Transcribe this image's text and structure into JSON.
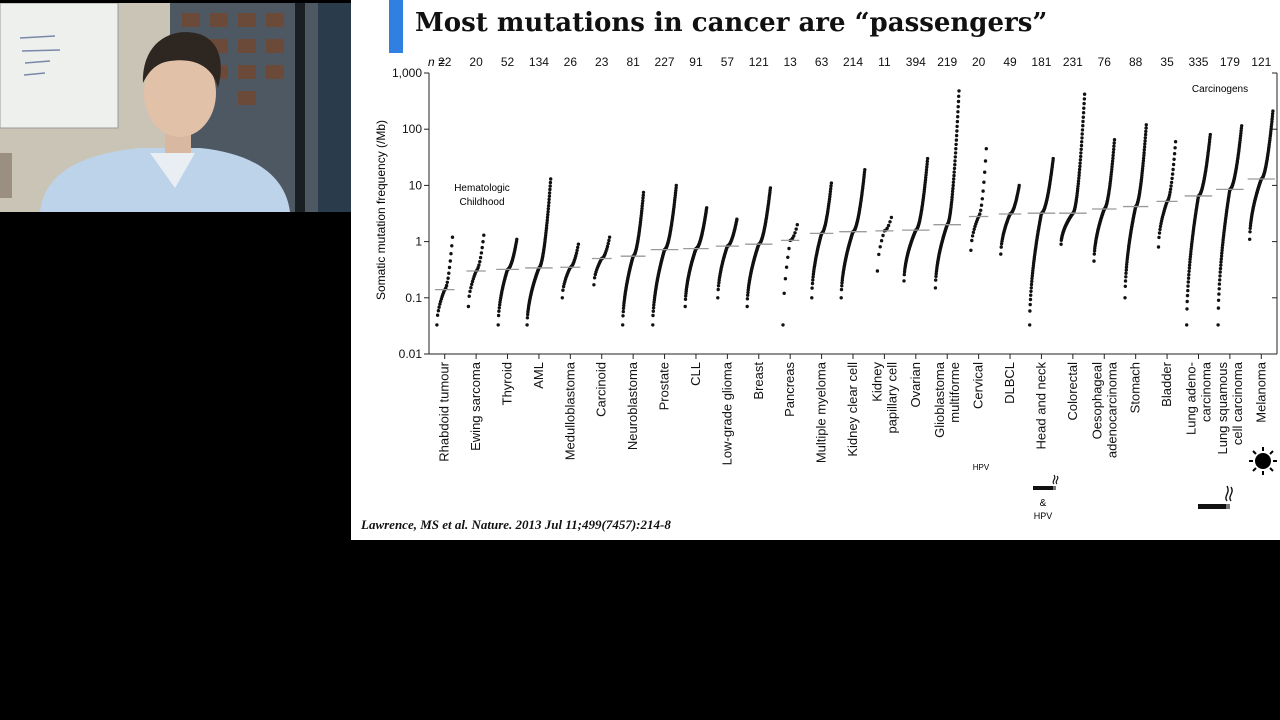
{
  "slide": {
    "title": "Most mutations in cancer are “passengers”",
    "citation": "Lawrence, MS et al. Nature. 2013 Jul 11;499(7457):214-8",
    "accent_color": "#2f80e0"
  },
  "webcam": {
    "icon": "presenter-video-feed"
  },
  "chart_data": {
    "type": "scatter",
    "title": "",
    "ylabel": "Somatic mutation frequency (/Mb)",
    "yscale": "log",
    "ylim": [
      0.01,
      1000
    ],
    "yticks": [
      "0.01",
      "0.1",
      "1",
      "10",
      "100",
      "1,000"
    ],
    "n_prefix": "n =",
    "categories": [
      {
        "name": "Rhabdoid tumour",
        "n": "22",
        "median": 0.14,
        "min": 0.033,
        "max": 1.2
      },
      {
        "name": "Ewing sarcoma",
        "n": "20",
        "median": 0.3,
        "min": 0.07,
        "max": 1.3
      },
      {
        "name": "Thyroid",
        "n": "52",
        "median": 0.32,
        "min": 0.033,
        "max": 1.1
      },
      {
        "name": "AML",
        "n": "134",
        "median": 0.34,
        "min": 0.033,
        "max": 13
      },
      {
        "name": "Medulloblastoma",
        "n": "26",
        "median": 0.35,
        "min": 0.1,
        "max": 0.9
      },
      {
        "name": "Carcinoid",
        "n": "23",
        "median": 0.5,
        "min": 0.17,
        "max": 1.2
      },
      {
        "name": "Neuroblastoma",
        "n": "81",
        "median": 0.55,
        "min": 0.033,
        "max": 7.5
      },
      {
        "name": "Prostate",
        "n": "227",
        "median": 0.72,
        "min": 0.033,
        "max": 10
      },
      {
        "name": "CLL",
        "n": "91",
        "median": 0.75,
        "min": 0.07,
        "max": 4
      },
      {
        "name": "Low-grade glioma",
        "n": "57",
        "median": 0.83,
        "min": 0.1,
        "max": 2.5
      },
      {
        "name": "Breast",
        "n": "121",
        "median": 0.9,
        "min": 0.07,
        "max": 9
      },
      {
        "name": "Pancreas",
        "n": "13",
        "median": 1.05,
        "min": 0.033,
        "max": 2
      },
      {
        "name": "Multiple myeloma",
        "n": "63",
        "median": 1.4,
        "min": 0.1,
        "max": 11
      },
      {
        "name": "Kidney clear cell",
        "n": "214",
        "median": 1.5,
        "min": 0.1,
        "max": 19
      },
      {
        "name": "Kidney papillary cell",
        "n": "11",
        "median": 1.55,
        "min": 0.3,
        "max": 2.7
      },
      {
        "name": "Ovarian",
        "n": "394",
        "median": 1.6,
        "min": 0.2,
        "max": 30
      },
      {
        "name": "Glioblastoma multiforme",
        "n": "219",
        "median": 2.0,
        "min": 0.15,
        "max": 480
      },
      {
        "name": "Cervical",
        "n": "20",
        "median": 2.8,
        "min": 0.7,
        "max": 45
      },
      {
        "name": "DLBCL",
        "n": "49",
        "median": 3.1,
        "min": 0.6,
        "max": 10
      },
      {
        "name": "Head and neck",
        "n": "181",
        "median": 3.2,
        "min": 0.033,
        "max": 30
      },
      {
        "name": "Colorectal",
        "n": "231",
        "median": 3.2,
        "min": 0.9,
        "max": 420
      },
      {
        "name": "Oesophageal adenocarcinoma",
        "n": "76",
        "median": 3.8,
        "min": 0.45,
        "max": 65
      },
      {
        "name": "Stomach",
        "n": "88",
        "median": 4.2,
        "min": 0.1,
        "max": 120
      },
      {
        "name": "Bladder",
        "n": "35",
        "median": 5.2,
        "min": 0.8,
        "max": 60
      },
      {
        "name": "Lung adeno- carcinoma",
        "n": "335",
        "median": 6.5,
        "min": 0.033,
        "max": 80
      },
      {
        "name": "Lung squamous cell carcinoma",
        "n": "179",
        "median": 8.5,
        "min": 0.033,
        "max": 115
      },
      {
        "name": "Melanoma",
        "n": "121",
        "median": 13,
        "min": 1.1,
        "max": 210
      }
    ],
    "annotations": {
      "hematologic": "Hematologic",
      "childhood": "Childhood",
      "carcinogens": "Carcinogens",
      "hpv_cervical": "HPV",
      "hpv_headneck": "HPV",
      "ampersand": "&"
    },
    "icons": [
      "cigarette-icon",
      "cigarette-icon",
      "sun-icon"
    ],
    "point_color": "#111111",
    "median_color": "#9a9a9a"
  }
}
